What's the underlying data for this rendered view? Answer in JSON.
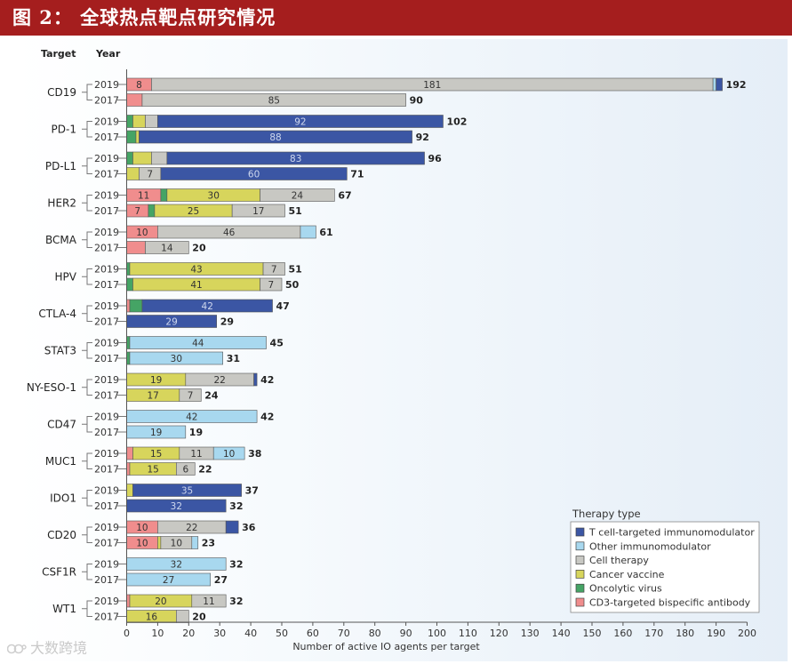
{
  "header": {
    "title": "图 2： 全球热点靶点研究情况"
  },
  "watermark": {
    "text": "大数跨境"
  },
  "chart_data": {
    "type": "bar",
    "orientation": "horizontal",
    "stacked": true,
    "column_headers": {
      "target": "Target",
      "year": "Year"
    },
    "xlabel": "Number of active IO agents per target",
    "xlim": [
      0,
      200
    ],
    "x_ticks": [
      0,
      10,
      20,
      30,
      40,
      50,
      60,
      70,
      80,
      90,
      100,
      110,
      120,
      130,
      140,
      150,
      160,
      170,
      180,
      190,
      200
    ],
    "legend_title": "Therapy type",
    "legend_position": "bottom-right",
    "series": [
      {
        "key": "tcell",
        "name": "T cell-targeted immunomodulator",
        "color": "#3b56a4"
      },
      {
        "key": "other",
        "name": "Other immunomodulator",
        "color": "#a8d8ef"
      },
      {
        "key": "cell",
        "name": "Cell therapy",
        "color": "#c8c8c3"
      },
      {
        "key": "vaccine",
        "name": "Cancer vaccine",
        "color": "#d7d55c"
      },
      {
        "key": "virus",
        "name": "Oncolytic virus",
        "color": "#45a465"
      },
      {
        "key": "cd3",
        "name": "CD3-targeted bispecific antibody",
        "color": "#f08d8d"
      }
    ],
    "stack_order": [
      "cd3",
      "virus",
      "vaccine",
      "cell",
      "other",
      "tcell"
    ],
    "groups": [
      {
        "target": "CD19",
        "bars": [
          {
            "year": "2019",
            "total": "192",
            "segments": [
              {
                "type": "cd3",
                "value": 8,
                "label": "8"
              },
              {
                "type": "cell",
                "value": 181,
                "label": "181"
              },
              {
                "type": "other",
                "value": 1,
                "label": ""
              },
              {
                "type": "tcell",
                "value": 2,
                "label": ""
              }
            ]
          },
          {
            "year": "2017",
            "total": "90",
            "segments": [
              {
                "type": "cd3",
                "value": 5,
                "label": ""
              },
              {
                "type": "cell",
                "value": 85,
                "label": "85"
              }
            ]
          }
        ]
      },
      {
        "target": "PD-1",
        "bars": [
          {
            "year": "2019",
            "total": "102",
            "segments": [
              {
                "type": "virus",
                "value": 2,
                "label": ""
              },
              {
                "type": "vaccine",
                "value": 4,
                "label": ""
              },
              {
                "type": "cell",
                "value": 4,
                "label": ""
              },
              {
                "type": "tcell",
                "value": 92,
                "label": "92"
              }
            ]
          },
          {
            "year": "2017",
            "total": "92",
            "segments": [
              {
                "type": "virus",
                "value": 3,
                "label": ""
              },
              {
                "type": "vaccine",
                "value": 1,
                "label": ""
              },
              {
                "type": "tcell",
                "value": 88,
                "label": "88"
              }
            ]
          }
        ]
      },
      {
        "target": "PD-L1",
        "bars": [
          {
            "year": "2019",
            "total": "96",
            "segments": [
              {
                "type": "virus",
                "value": 2,
                "label": ""
              },
              {
                "type": "vaccine",
                "value": 6,
                "label": ""
              },
              {
                "type": "cell",
                "value": 5,
                "label": ""
              },
              {
                "type": "tcell",
                "value": 83,
                "label": "83"
              }
            ]
          },
          {
            "year": "2017",
            "total": "71",
            "segments": [
              {
                "type": "vaccine",
                "value": 4,
                "label": ""
              },
              {
                "type": "cell",
                "value": 7,
                "label": "7"
              },
              {
                "type": "tcell",
                "value": 60,
                "label": "60"
              }
            ]
          }
        ]
      },
      {
        "target": "HER2",
        "bars": [
          {
            "year": "2019",
            "total": "67",
            "segments": [
              {
                "type": "cd3",
                "value": 11,
                "label": "11"
              },
              {
                "type": "virus",
                "value": 2,
                "label": ""
              },
              {
                "type": "vaccine",
                "value": 30,
                "label": "30"
              },
              {
                "type": "cell",
                "value": 24,
                "label": "24"
              }
            ]
          },
          {
            "year": "2017",
            "total": "51",
            "segments": [
              {
                "type": "cd3",
                "value": 7,
                "label": "7"
              },
              {
                "type": "virus",
                "value": 2,
                "label": ""
              },
              {
                "type": "vaccine",
                "value": 25,
                "label": "25"
              },
              {
                "type": "cell",
                "value": 17,
                "label": "17"
              }
            ]
          }
        ]
      },
      {
        "target": "BCMA",
        "bars": [
          {
            "year": "2019",
            "total": "61",
            "segments": [
              {
                "type": "cd3",
                "value": 10,
                "label": "10"
              },
              {
                "type": "cell",
                "value": 46,
                "label": "46"
              },
              {
                "type": "other",
                "value": 5,
                "label": ""
              }
            ]
          },
          {
            "year": "2017",
            "total": "20",
            "segments": [
              {
                "type": "cd3",
                "value": 6,
                "label": ""
              },
              {
                "type": "cell",
                "value": 14,
                "label": "14"
              }
            ]
          }
        ]
      },
      {
        "target": "HPV",
        "bars": [
          {
            "year": "2019",
            "total": "51",
            "segments": [
              {
                "type": "virus",
                "value": 1,
                "label": ""
              },
              {
                "type": "vaccine",
                "value": 43,
                "label": "43"
              },
              {
                "type": "cell",
                "value": 7,
                "label": "7"
              }
            ]
          },
          {
            "year": "2017",
            "total": "50",
            "segments": [
              {
                "type": "virus",
                "value": 2,
                "label": ""
              },
              {
                "type": "vaccine",
                "value": 41,
                "label": "41"
              },
              {
                "type": "cell",
                "value": 7,
                "label": "7"
              }
            ]
          }
        ]
      },
      {
        "target": "CTLA-4",
        "bars": [
          {
            "year": "2019",
            "total": "47",
            "segments": [
              {
                "type": "cd3",
                "value": 1,
                "label": ""
              },
              {
                "type": "virus",
                "value": 4,
                "label": ""
              },
              {
                "type": "tcell",
                "value": 42,
                "label": "42"
              }
            ]
          },
          {
            "year": "2017",
            "total": "29",
            "segments": [
              {
                "type": "tcell",
                "value": 29,
                "label": "29"
              }
            ]
          }
        ]
      },
      {
        "target": "STAT3",
        "bars": [
          {
            "year": "2019",
            "total": "45",
            "segments": [
              {
                "type": "virus",
                "value": 1,
                "label": ""
              },
              {
                "type": "other",
                "value": 44,
                "label": "44"
              }
            ]
          },
          {
            "year": "2017",
            "total": "31",
            "segments": [
              {
                "type": "virus",
                "value": 1,
                "label": ""
              },
              {
                "type": "other",
                "value": 30,
                "label": "30"
              }
            ]
          }
        ]
      },
      {
        "target": "NY-ESO-1",
        "bars": [
          {
            "year": "2019",
            "total": "42",
            "segments": [
              {
                "type": "vaccine",
                "value": 19,
                "label": "19"
              },
              {
                "type": "cell",
                "value": 22,
                "label": "22"
              },
              {
                "type": "tcell",
                "value": 1,
                "label": ""
              }
            ]
          },
          {
            "year": "2017",
            "total": "24",
            "segments": [
              {
                "type": "vaccine",
                "value": 17,
                "label": "17"
              },
              {
                "type": "cell",
                "value": 7,
                "label": "7"
              }
            ]
          }
        ]
      },
      {
        "target": "CD47",
        "bars": [
          {
            "year": "2019",
            "total": "42",
            "segments": [
              {
                "type": "other",
                "value": 42,
                "label": "42"
              }
            ]
          },
          {
            "year": "2017",
            "total": "19",
            "segments": [
              {
                "type": "other",
                "value": 19,
                "label": "19"
              }
            ]
          }
        ]
      },
      {
        "target": "MUC1",
        "bars": [
          {
            "year": "2019",
            "total": "38",
            "segments": [
              {
                "type": "cd3",
                "value": 2,
                "label": ""
              },
              {
                "type": "vaccine",
                "value": 15,
                "label": "15"
              },
              {
                "type": "cell",
                "value": 11,
                "label": "11"
              },
              {
                "type": "other",
                "value": 10,
                "label": "10"
              }
            ]
          },
          {
            "year": "2017",
            "total": "22",
            "segments": [
              {
                "type": "cd3",
                "value": 1,
                "label": ""
              },
              {
                "type": "vaccine",
                "value": 15,
                "label": "15"
              },
              {
                "type": "cell",
                "value": 6,
                "label": "6"
              }
            ]
          }
        ]
      },
      {
        "target": "IDO1",
        "bars": [
          {
            "year": "2019",
            "total": "37",
            "segments": [
              {
                "type": "vaccine",
                "value": 2,
                "label": ""
              },
              {
                "type": "tcell",
                "value": 35,
                "label": "35"
              }
            ]
          },
          {
            "year": "2017",
            "total": "32",
            "segments": [
              {
                "type": "tcell",
                "value": 32,
                "label": "32"
              }
            ]
          }
        ]
      },
      {
        "target": "CD20",
        "bars": [
          {
            "year": "2019",
            "total": "36",
            "segments": [
              {
                "type": "cd3",
                "value": 10,
                "label": "10"
              },
              {
                "type": "cell",
                "value": 22,
                "label": "22"
              },
              {
                "type": "tcell",
                "value": 4,
                "label": ""
              }
            ]
          },
          {
            "year": "2017",
            "total": "23",
            "segments": [
              {
                "type": "cd3",
                "value": 10,
                "label": "10"
              },
              {
                "type": "vaccine",
                "value": 1,
                "label": ""
              },
              {
                "type": "cell",
                "value": 10,
                "label": "10"
              },
              {
                "type": "other",
                "value": 2,
                "label": ""
              }
            ]
          }
        ]
      },
      {
        "target": "CSF1R",
        "bars": [
          {
            "year": "2019",
            "total": "32",
            "segments": [
              {
                "type": "other",
                "value": 32,
                "label": "32"
              }
            ]
          },
          {
            "year": "2017",
            "total": "27",
            "segments": [
              {
                "type": "other",
                "value": 27,
                "label": "27"
              }
            ]
          }
        ]
      },
      {
        "target": "WT1",
        "bars": [
          {
            "year": "2019",
            "total": "32",
            "segments": [
              {
                "type": "cd3",
                "value": 1,
                "label": ""
              },
              {
                "type": "vaccine",
                "value": 20,
                "label": "20"
              },
              {
                "type": "cell",
                "value": 11,
                "label": "11"
              }
            ]
          },
          {
            "year": "2017",
            "total": "20",
            "segments": [
              {
                "type": "vaccine",
                "value": 16,
                "label": "16"
              },
              {
                "type": "cell",
                "value": 4,
                "label": ""
              }
            ]
          }
        ]
      }
    ]
  }
}
